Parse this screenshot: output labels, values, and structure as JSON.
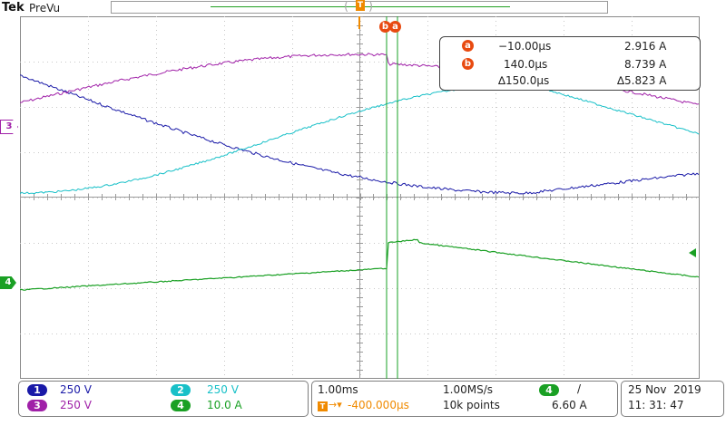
{
  "header": {
    "brand": "Tek",
    "mode": "PreVu",
    "trigger_marker": "T"
  },
  "channel_markers": {
    "ch3": "3",
    "ch4": "4"
  },
  "cursor_labels": {
    "b": "b",
    "a": "a"
  },
  "cursor_readout": {
    "a_badge": "a",
    "a_time": "−10.00µs",
    "a_value": "2.916 A",
    "b_badge": "b",
    "b_time": "140.0µs",
    "b_value": "8.739 A",
    "delta_time": "∆150.0µs",
    "delta_value": "∆5.823 A"
  },
  "channels": [
    {
      "id": "1",
      "scale": "250 V",
      "color": "#1a1aa8"
    },
    {
      "id": "2",
      "scale": "250 V",
      "color": "#18c0c8"
    },
    {
      "id": "3",
      "scale": "250 V",
      "color": "#a020a8"
    },
    {
      "id": "4",
      "scale": "10.0 A",
      "color": "#1aa024"
    }
  ],
  "timebase": {
    "horizontal_scale": "1.00ms",
    "sample_rate": "1.00MS/s",
    "trigger_offset": "-400.000µs",
    "record_length": "10k points"
  },
  "trigger": {
    "source": "4",
    "slope": "/",
    "level": "6.60 A"
  },
  "datetime": {
    "date": "25 Nov  2019",
    "time": "11: 31: 47"
  },
  "colors": {
    "ch1": "#1a1aa8",
    "ch2": "#18c0c8",
    "ch3": "#a020a8",
    "ch4": "#1aa024",
    "cursor": "#1aa024",
    "trigger": "#f08a00",
    "cursor_badge": "#e84a10"
  }
}
